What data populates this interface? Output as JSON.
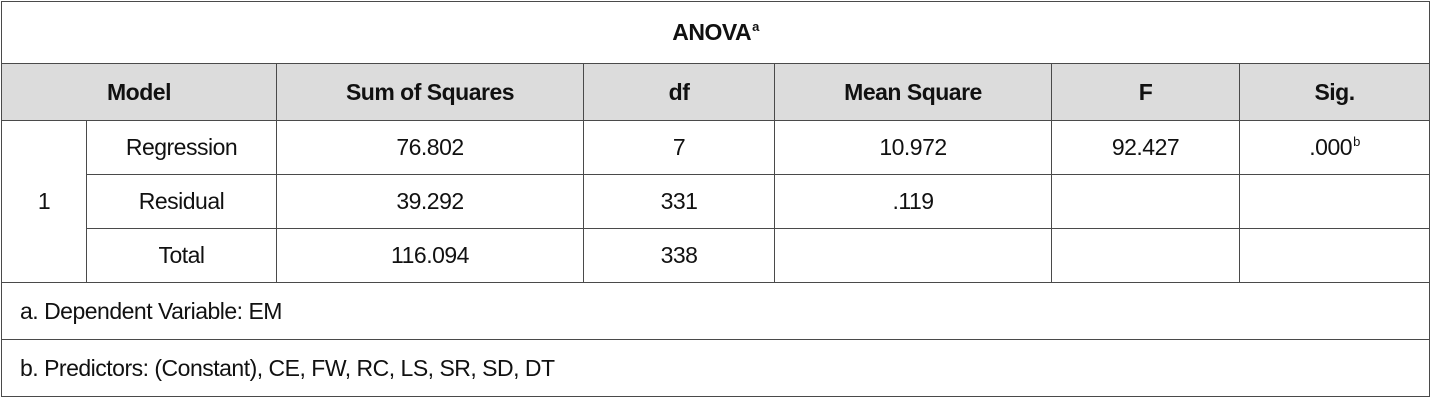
{
  "title": {
    "text": "ANOVA",
    "note": "a"
  },
  "headers": [
    "Model",
    "Sum of Squares",
    "df",
    "Mean Square",
    "F",
    "Sig."
  ],
  "model": "1",
  "rows": [
    {
      "label": "Regression",
      "cells": [
        "76.802",
        "7",
        "10.972",
        "92.427",
        ".000"
      ],
      "sig_note": "b"
    },
    {
      "label": "Residual",
      "cells": [
        "39.292",
        "331",
        ".119"
      ]
    },
    {
      "label": "Total",
      "cells": [
        "116.094",
        "338"
      ]
    }
  ],
  "footnotes": [
    "a. Dependent Variable: EM",
    "b. Predictors: (Constant), CE, FW, RC, LS, SR, SD, DT"
  ]
}
